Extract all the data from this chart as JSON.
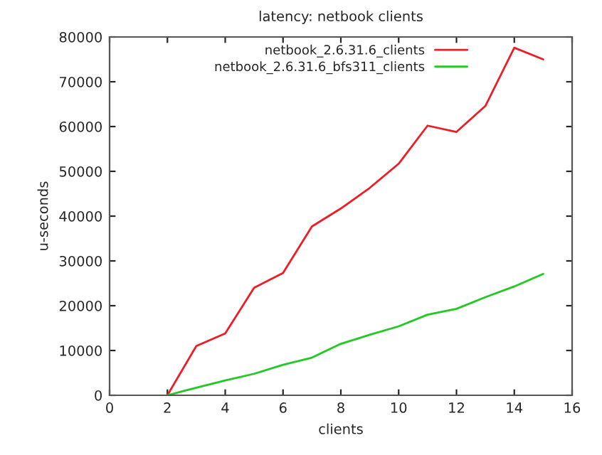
{
  "chart_data": {
    "type": "line",
    "title": "latency: netbook clients",
    "xlabel": "clients",
    "ylabel": "u-seconds",
    "x": [
      2,
      3,
      4,
      5,
      6,
      7,
      8,
      9,
      10,
      11,
      12,
      13,
      14,
      15
    ],
    "series": [
      {
        "name": "netbook_2.6.31.6_clients",
        "color": "#ee1c25",
        "values": [
          0,
          11000,
          13800,
          24000,
          27300,
          37700,
          41700,
          46300,
          51700,
          60200,
          58800,
          64600,
          77600,
          75000
        ]
      },
      {
        "name": "netbook_2.6.31.6_bfs311_clients",
        "color": "#22c922",
        "values": [
          0,
          1700,
          3300,
          4800,
          6800,
          8400,
          11500,
          13500,
          15400,
          18000,
          19300,
          21900,
          24300,
          27100
        ]
      }
    ],
    "xlim": [
      0,
      16
    ],
    "xticks": [
      0,
      2,
      4,
      6,
      8,
      10,
      12,
      14,
      16
    ],
    "ylim": [
      0,
      80000
    ],
    "yticks": [
      0,
      10000,
      20000,
      30000,
      40000,
      50000,
      60000,
      70000,
      80000
    ],
    "grid": false,
    "legend": "top right",
    "marker": "none",
    "line_style": "solid"
  }
}
